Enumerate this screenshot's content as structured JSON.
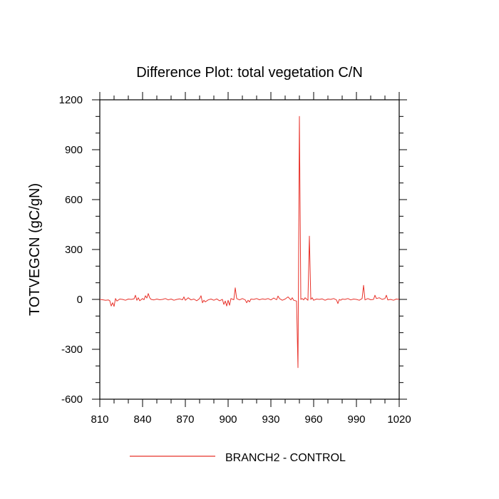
{
  "chart_data": {
    "type": "line",
    "title": "Difference Plot: total vegetation C/N",
    "xlabel": "",
    "ylabel": "TOTVEGCN  (gC/gN)",
    "xlim": [
      810,
      1020
    ],
    "ylim": [
      -600,
      1200
    ],
    "xticks": [
      810,
      840,
      870,
      900,
      930,
      960,
      990,
      1020
    ],
    "yticks": [
      -600,
      -300,
      0,
      300,
      600,
      900,
      1200
    ],
    "grid": false,
    "legend_position": "bottom-center",
    "series": [
      {
        "name": "BRANCH2 - CONTROL",
        "color": "#e8332b",
        "x": [
          810,
          812,
          814,
          816,
          817,
          818,
          819,
          820,
          821,
          822,
          824,
          826,
          828,
          830,
          832,
          834,
          835,
          836,
          837,
          838,
          840,
          841,
          842,
          843,
          844,
          845,
          846,
          848,
          850,
          852,
          854,
          856,
          858,
          860,
          862,
          864,
          866,
          868,
          869,
          870,
          872,
          874,
          876,
          878,
          880,
          881,
          882,
          883,
          884,
          886,
          888,
          890,
          892,
          894,
          896,
          897,
          898,
          899,
          900,
          901,
          902,
          904,
          905,
          906,
          908,
          910,
          912,
          913,
          914,
          915,
          916,
          918,
          920,
          922,
          924,
          926,
          928,
          930,
          932,
          934,
          935,
          936,
          938,
          940,
          942,
          944,
          945,
          946,
          948,
          949,
          950,
          951,
          952,
          953,
          954,
          956,
          957,
          958,
          959,
          960,
          962,
          964,
          966,
          968,
          970,
          972,
          974,
          976,
          977,
          978,
          979,
          980,
          982,
          984,
          986,
          988,
          990,
          992,
          994,
          995,
          996,
          998,
          1000,
          1002,
          1003,
          1004,
          1006,
          1008,
          1010,
          1011,
          1012,
          1014,
          1016,
          1018,
          1020
        ],
        "y": [
          0,
          -2,
          -5,
          -3,
          -8,
          -40,
          -20,
          -42,
          5,
          -10,
          2,
          0,
          -5,
          2,
          0,
          3,
          25,
          -5,
          10,
          -8,
          5,
          -2,
          22,
          8,
          35,
          10,
          0,
          -3,
          2,
          -2,
          0,
          5,
          -3,
          2,
          -5,
          0,
          3,
          -2,
          15,
          -5,
          10,
          -3,
          2,
          -8,
          5,
          22,
          -20,
          -5,
          -15,
          -3,
          2,
          -5,
          3,
          -8,
          0,
          -30,
          -10,
          -40,
          -5,
          -35,
          5,
          -2,
          70,
          5,
          -3,
          5,
          -3,
          -20,
          -5,
          -15,
          2,
          0,
          5,
          -2,
          3,
          0,
          5,
          -3,
          8,
          -2,
          20,
          5,
          -5,
          2,
          15,
          -3,
          10,
          -5,
          -10,
          -410,
          1100,
          0,
          5,
          -3,
          10,
          -5,
          380,
          0,
          10,
          -5,
          2,
          0,
          3,
          -5,
          2,
          0,
          5,
          -3,
          -25,
          0,
          -5,
          2,
          0,
          5,
          -3,
          2,
          0,
          -5,
          5,
          85,
          -3,
          5,
          -2,
          0,
          25,
          5,
          10,
          0,
          5,
          25,
          -3,
          0,
          -5,
          2,
          0
        ]
      }
    ]
  }
}
